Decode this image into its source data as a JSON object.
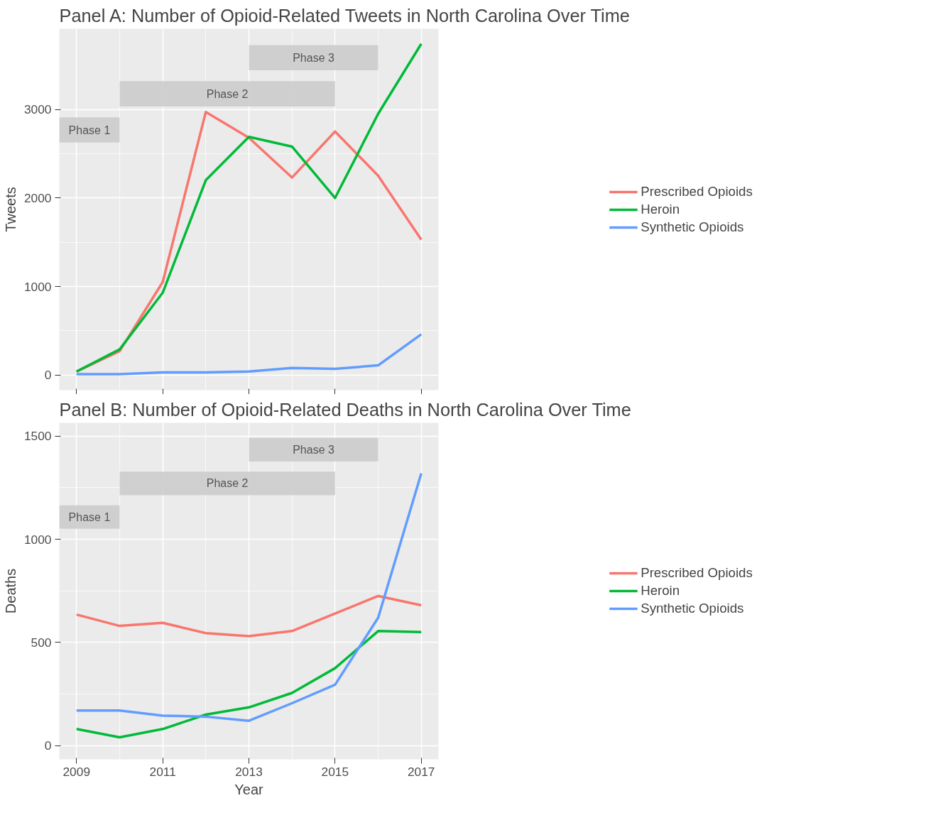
{
  "chart_data": [
    {
      "type": "line",
      "title": "Panel A: Number of Opioid-Related Tweets in North Carolina Over Time",
      "ylabel": "Tweets",
      "x": [
        2009,
        2010,
        2011,
        2012,
        2013,
        2014,
        2015,
        2016,
        2017
      ],
      "series": [
        {
          "name": "Prescribed Opioids",
          "color": "#f8766d",
          "values": [
            40,
            270,
            1050,
            2970,
            2680,
            2230,
            2750,
            2250,
            1530
          ]
        },
        {
          "name": "Heroin",
          "color": "#00ba38",
          "values": [
            40,
            290,
            930,
            2200,
            2690,
            2580,
            2000,
            2950,
            3740
          ]
        },
        {
          "name": "Synthetic Opioids",
          "color": "#619cff",
          "values": [
            10,
            10,
            30,
            30,
            40,
            80,
            70,
            110,
            460
          ]
        }
      ],
      "xlim": [
        2008.6,
        2017.4
      ],
      "xticks": [
        2009,
        2011,
        2013,
        2015,
        2017
      ],
      "ylim": [
        -170,
        3910
      ],
      "yticks": [
        0,
        1000,
        2000,
        3000
      ],
      "bands": [
        {
          "axis": "x",
          "from": 2008.6,
          "to": 2010,
          "label": "Phase 1",
          "color": "#cccccc"
        },
        {
          "axis": "x",
          "from": 2010,
          "to": 2015,
          "label": "Phase 2",
          "color": "#cccccc"
        },
        {
          "axis": "x",
          "from": 2013,
          "to": 2016,
          "label": "Phase 3",
          "color": "#cccccc"
        }
      ],
      "tick_labels": "y",
      "grid": true,
      "legend": "right",
      "line_style": "solid"
    },
    {
      "type": "line",
      "title": "Panel B: Number of Opioid-Related Deaths in North Carolina Over Time",
      "xlabel": "Year",
      "ylabel": "Deaths",
      "x": [
        2009,
        2010,
        2011,
        2012,
        2013,
        2014,
        2015,
        2016,
        2017
      ],
      "series": [
        {
          "name": "Prescribed Opioids",
          "color": "#f8766d",
          "values": [
            635,
            580,
            595,
            545,
            530,
            555,
            640,
            725,
            680
          ]
        },
        {
          "name": "Heroin",
          "color": "#00ba38",
          "values": [
            80,
            40,
            80,
            150,
            185,
            255,
            375,
            555,
            550
          ]
        },
        {
          "name": "Synthetic Opioids",
          "color": "#619cff",
          "values": [
            170,
            170,
            145,
            140,
            120,
            205,
            295,
            620,
            1320
          ]
        }
      ],
      "xlim": [
        2008.6,
        2017.4
      ],
      "xticks": [
        2009,
        2011,
        2013,
        2015,
        2017
      ],
      "ylim": [
        -67,
        1565
      ],
      "yticks": [
        0,
        500,
        1000,
        1500
      ],
      "bands": [
        {
          "axis": "x",
          "from": 2008.6,
          "to": 2010,
          "label": "Phase 1",
          "color": "#cccccc"
        },
        {
          "axis": "x",
          "from": 2010,
          "to": 2015,
          "label": "Phase 2",
          "color": "#cccccc"
        },
        {
          "axis": "x",
          "from": 2013,
          "to": 2016,
          "label": "Phase 3",
          "color": "#cccccc"
        }
      ],
      "grid": true,
      "legend": "right",
      "line_style": "solid"
    }
  ]
}
